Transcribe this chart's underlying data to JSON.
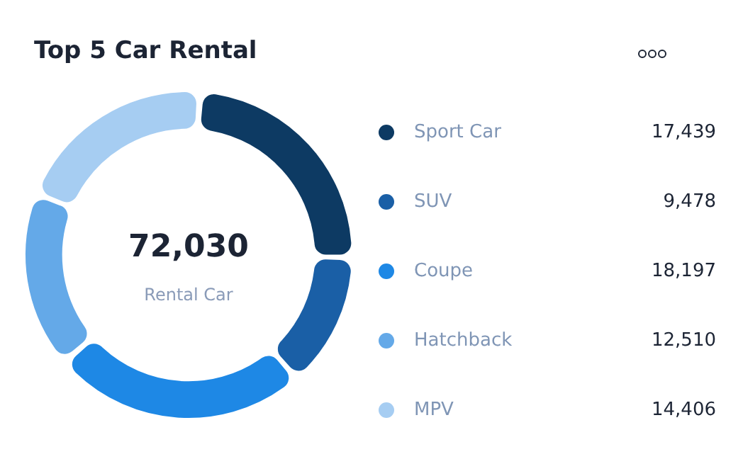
{
  "chart_data": {
    "type": "donut",
    "title": "Top 5 Car Rental",
    "categories": [
      "Sport Car",
      "SUV",
      "Coupe",
      "Hatchback",
      "MPV"
    ],
    "values": [
      17439,
      9478,
      18197,
      12510,
      14406
    ],
    "colors": [
      "#0d3a63",
      "#1a5fa6",
      "#1e88e5",
      "#64a9e8",
      "#a6cdf2"
    ],
    "annotations": [
      "72,030",
      "Rental Car"
    ],
    "value_labels": [
      "17,439",
      "9,478",
      "18,197",
      "12,510",
      "14,406"
    ],
    "legend": "right"
  }
}
